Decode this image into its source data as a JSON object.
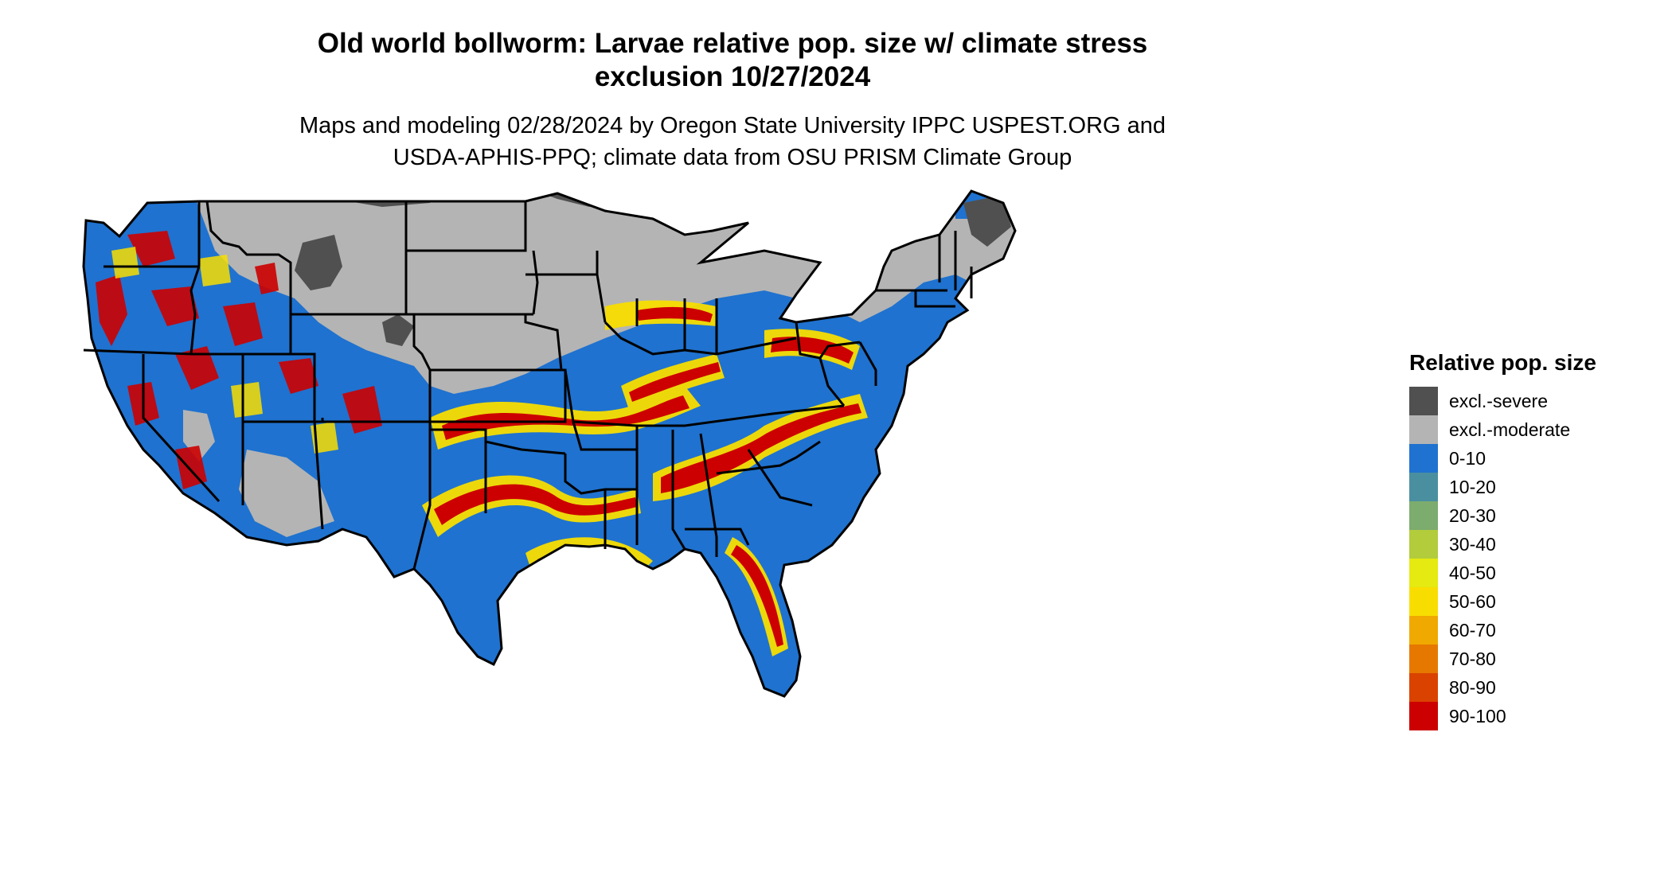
{
  "title_line1": "Old world bollworm: Larvae relative pop. size w/ climate stress",
  "title_line2": "exclusion 10/27/2024",
  "subtitle_line1": "Maps and modeling 02/28/2024 by Oregon State University IPPC USPEST.ORG and",
  "subtitle_line2": "USDA-APHIS-PPQ; climate data from OSU PRISM Climate Group",
  "legend": {
    "title": "Relative pop. size",
    "items": [
      {
        "label": "excl.-severe",
        "color": "#505050"
      },
      {
        "label": "excl.-moderate",
        "color": "#b4b4b4"
      },
      {
        "label": "0-10",
        "color": "#1f72cf"
      },
      {
        "label": "10-20",
        "color": "#4a8fa0"
      },
      {
        "label": "20-30",
        "color": "#7cac6e"
      },
      {
        "label": "30-40",
        "color": "#b3cc3c"
      },
      {
        "label": "40-50",
        "color": "#e5ea10"
      },
      {
        "label": "50-60",
        "color": "#f8de00"
      },
      {
        "label": "60-70",
        "color": "#f0a900"
      },
      {
        "label": "70-80",
        "color": "#e67800"
      },
      {
        "label": "80-90",
        "color": "#da4200"
      },
      {
        "label": "90-100",
        "color": "#cc0000"
      }
    ]
  }
}
